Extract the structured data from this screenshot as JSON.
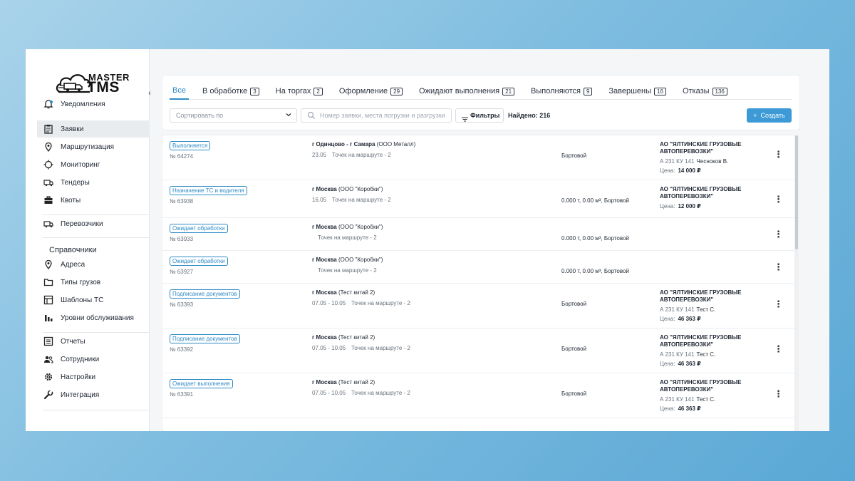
{
  "logo": {
    "line1": "MASTER",
    "line2": "TMS"
  },
  "sidebar": {
    "notifications": "Уведомления",
    "group1": [
      "Заявки",
      "Маршрутизация",
      "Мониторинг",
      "Тендеры",
      "Квоты"
    ],
    "group2": [
      "Перевозчики"
    ],
    "section_title": "Справочники",
    "group3": [
      "Адреса",
      "Типы грузов",
      "Шаблоны ТС",
      "Уровни обслуживания"
    ],
    "group4": [
      "Отчеты",
      "Сотрудники",
      "Настройки",
      "Интеграция"
    ]
  },
  "tabs": [
    {
      "label": "Все",
      "count": ""
    },
    {
      "label": "В обработке",
      "count": "3"
    },
    {
      "label": "На торгах",
      "count": "2"
    },
    {
      "label": "Оформление",
      "count": "29"
    },
    {
      "label": "Ожидают выполнения",
      "count": "21"
    },
    {
      "label": "Выполняются",
      "count": "9"
    },
    {
      "label": "Завершены",
      "count": "16"
    },
    {
      "label": "Отказы",
      "count": "136"
    }
  ],
  "toolbar": {
    "sort_placeholder": "Сортировать по",
    "search_placeholder": "Номер заявки, места погрузки и разгрузки",
    "filters_label": "Фильтры",
    "found_label": "Найдено:",
    "found_count": "216",
    "create_label": "Создать"
  },
  "labels": {
    "points": "Точек на маршруте - 2",
    "price": "Цена:"
  },
  "orders": [
    {
      "status": "Выполняется",
      "number": "№ 64274",
      "route": "г Одинцово - г Самара",
      "client": "(ООО Металл)",
      "dates": "23.05",
      "cargo": "Бортовой",
      "carrier": "АО \"ЯЛТИНСКИЕ ГРУЗОВЫЕ АВТОПЕРЕВОЗКИ\"",
      "plate": "А 231 КУ 141",
      "driver": "Чесноков В.",
      "price": "14 000 ₽"
    },
    {
      "status": "Назначение ТС и водителя",
      "number": "№ 63938",
      "route": "г Москва",
      "client": "(ООО \"Коробки\")",
      "dates": "16.05",
      "cargo": "0.000 т, 0.00 м³, Бортовой",
      "carrier": "АО \"ЯЛТИНСКИЕ ГРУЗОВЫЕ АВТОПЕРЕВОЗКИ\"",
      "plate": "",
      "driver": "",
      "price": "12 000 ₽"
    },
    {
      "status": "Ожидает обработки",
      "number": "№ 63933",
      "route": "г Москва",
      "client": "(ООО \"Коробки\")",
      "dates": "",
      "cargo": "0.000 т, 0.00 м³, Бортовой",
      "carrier": "",
      "plate": "",
      "driver": "",
      "price": ""
    },
    {
      "status": "Ожидает обработки",
      "number": "№ 63927",
      "route": "г Москва",
      "client": "(ООО \"Коробки\")",
      "dates": "",
      "cargo": "0.000 т, 0.00 м³, Бортовой",
      "carrier": "",
      "plate": "",
      "driver": "",
      "price": ""
    },
    {
      "status": "Подписание документов",
      "number": "№ 63393",
      "route": "г Москва",
      "client": "(Тест китай 2)",
      "dates": "07.05 - 10.05",
      "cargo": "Бортовой",
      "carrier": "АО \"ЯЛТИНСКИЕ ГРУЗОВЫЕ АВТОПЕРЕВОЗКИ\"",
      "plate": "А 231 КУ 141",
      "driver": "Тест С.",
      "price": "46 363 ₽"
    },
    {
      "status": "Подписание документов",
      "number": "№ 63392",
      "route": "г Москва",
      "client": "(Тест китай 2)",
      "dates": "07.05 - 10.05",
      "cargo": "Бортовой",
      "carrier": "АО \"ЯЛТИНСКИЕ ГРУЗОВЫЕ АВТОПЕРЕВОЗКИ\"",
      "plate": "А 231 КУ 141",
      "driver": "Тест С.",
      "price": "46 363 ₽"
    },
    {
      "status": "Ожидает выполнения",
      "number": "№ 63391",
      "route": "г Москва",
      "client": "(Тест китай 2)",
      "dates": "07.05 - 10.05",
      "cargo": "Бортовой",
      "carrier": "АО \"ЯЛТИНСКИЕ ГРУЗОВЫЕ АВТОПЕРЕВОЗКИ\"",
      "plate": "А 231 КУ 141",
      "driver": "Тест С.",
      "price": "46 363 ₽"
    }
  ],
  "colors": {
    "accent": "#2e8bc6",
    "button": "#3d9ad6",
    "background_gradient_start": "#a9d3ea",
    "background_gradient_end": "#5aa8d6"
  }
}
